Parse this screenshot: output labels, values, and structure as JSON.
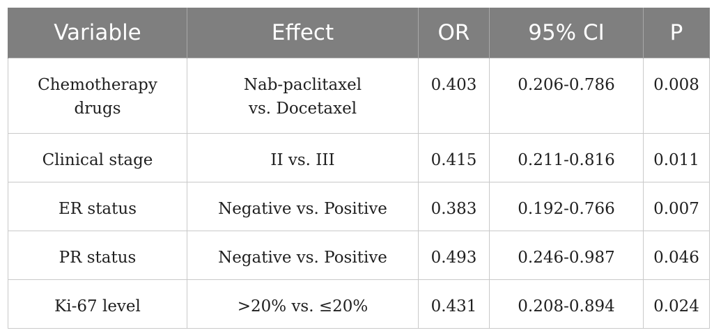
{
  "table": {
    "headers": [
      "Variable",
      "Effect",
      "OR",
      "95% CI",
      "P"
    ],
    "rows": [
      {
        "variable": [
          "Chemotherapy",
          "drugs"
        ],
        "effect": [
          "Nab-paclitaxel",
          "vs. Docetaxel"
        ],
        "or": "0.403",
        "ci": "0.206-0.786",
        "p": "0.008"
      },
      {
        "variable": [
          "Clinical stage"
        ],
        "effect": [
          "II vs. III"
        ],
        "or": "0.415",
        "ci": "0.211-0.816",
        "p": "0.011"
      },
      {
        "variable": [
          "ER status"
        ],
        "effect": [
          "Negative vs. Positive"
        ],
        "or": "0.383",
        "ci": "0.192-0.766",
        "p": "0.007"
      },
      {
        "variable": [
          "PR status"
        ],
        "effect": [
          "Negative vs. Positive"
        ],
        "or": "0.493",
        "ci": "0.246-0.987",
        "p": "0.046"
      },
      {
        "variable": [
          "Ki-67 level"
        ],
        "effect": [
          ">20% vs. ≤20%"
        ],
        "or": "0.431",
        "ci": "0.208-0.894",
        "p": "0.024"
      }
    ]
  }
}
